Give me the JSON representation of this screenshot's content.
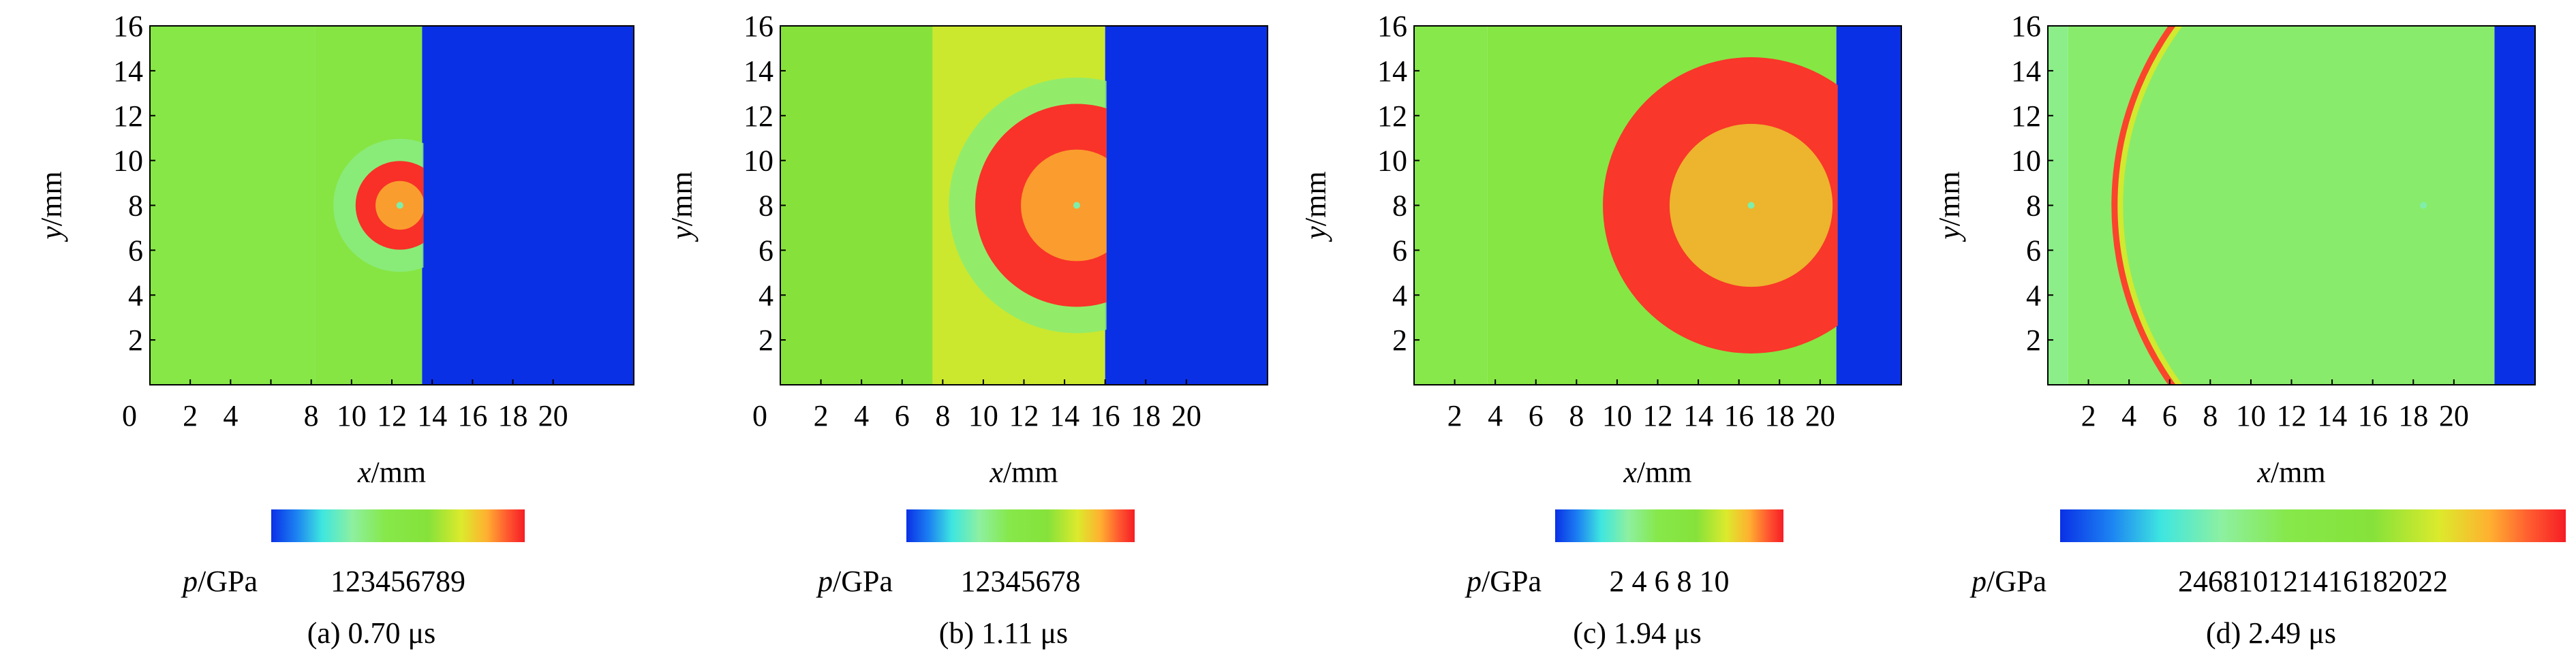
{
  "chart_data": [
    {
      "type": "heatmap",
      "caption": "(a) 0.70 μs",
      "xlabel": {
        "var": "x",
        "unit": "/mm"
      },
      "ylabel": {
        "var": "y",
        "unit": "/mm"
      },
      "xlim": [
        0,
        24
      ],
      "ylim": [
        0,
        16
      ],
      "x_ticks": [
        0,
        2,
        4,
        6,
        8,
        10,
        12,
        14,
        16,
        18,
        20
      ],
      "y_ticks": [
        2,
        4,
        6,
        8,
        10,
        12,
        14,
        16
      ],
      "x_tick_labels": [
        "0",
        "2",
        "4",
        "",
        "8",
        "10",
        "12",
        "14",
        "16",
        "18",
        "20"
      ],
      "y_tick_labels": [
        "2",
        "4",
        "6",
        "8",
        "10",
        "12",
        "14",
        "16"
      ],
      "colorbar": {
        "var": "p",
        "unit": "/GPa",
        "range": [
          0.5,
          9.5
        ],
        "ticks": [
          "1",
          "2",
          "3",
          "4",
          "5",
          "6",
          "7",
          "8",
          "9"
        ]
      },
      "regions": {
        "left_p": 4.8,
        "left_x_end": 8.2,
        "mid_p": 5.2,
        "front_x": 13.5,
        "right_p": 0.5,
        "center": [
          12.4,
          8.0
        ],
        "inner_radius": 2.2,
        "ring_radius": 3.3,
        "inner_p_low": 8.0,
        "inner_p_high": 9.3,
        "ring_p": 3.8
      }
    },
    {
      "type": "heatmap",
      "caption": "(b) 1.11 μs",
      "xlabel": {
        "var": "x",
        "unit": "/mm"
      },
      "ylabel": {
        "var": "y",
        "unit": "/mm"
      },
      "xlim": [
        0,
        24
      ],
      "ylim": [
        0,
        16
      ],
      "x_ticks": [
        0,
        2,
        4,
        6,
        8,
        10,
        12,
        14,
        16,
        18,
        20
      ],
      "y_ticks": [
        2,
        4,
        6,
        8,
        10,
        12,
        14,
        16
      ],
      "x_tick_labels": [
        "0",
        "2",
        "4",
        "6",
        "8",
        "10",
        "12",
        "14",
        "16",
        "18",
        "20"
      ],
      "y_tick_labels": [
        "2",
        "4",
        "6",
        "8",
        "10",
        "12",
        "14",
        "16"
      ],
      "colorbar": {
        "var": "p",
        "unit": "/GPa",
        "range": [
          0.5,
          8.5
        ],
        "ticks": [
          "1",
          "2",
          "3",
          "4",
          "5",
          "6",
          "7",
          "8"
        ]
      },
      "regions": {
        "left_p": 5.4,
        "left_x_end": 7.5,
        "mid_p": 6.3,
        "front_x": 16.0,
        "right_p": 0.5,
        "center": [
          14.6,
          8.0
        ],
        "inner_radius": 5.0,
        "ring_radius": 6.3,
        "inner_p_low": 7.2,
        "inner_p_high": 8.3,
        "ring_p": 3.6
      }
    },
    {
      "type": "heatmap",
      "caption": "(c) 1.94 μs",
      "xlabel": {
        "var": "x",
        "unit": "/mm"
      },
      "ylabel": {
        "var": "y",
        "unit": "/mm"
      },
      "xlim": [
        0,
        24
      ],
      "ylim": [
        0,
        16
      ],
      "x_ticks": [
        2,
        4,
        6,
        8,
        10,
        12,
        14,
        16,
        18,
        20
      ],
      "y_ticks": [
        2,
        4,
        6,
        8,
        10,
        12,
        14,
        16
      ],
      "x_tick_labels": [
        "2",
        "4",
        "6",
        "8",
        "10",
        "12",
        "14",
        "16",
        "18",
        "20"
      ],
      "y_tick_labels": [
        "2",
        "4",
        "6",
        "8",
        "10",
        "12",
        "14",
        "16"
      ],
      "colorbar": {
        "var": "p",
        "unit": "/GPa",
        "range": [
          0.5,
          10.5
        ],
        "ticks": [
          "2",
          "4",
          "6",
          "8",
          "10"
        ]
      },
      "regions": {
        "left_p": 5.0,
        "left_x_end": 3.6,
        "mid_p": 5.6,
        "front_x": 20.8,
        "right_p": 0.5,
        "center": [
          16.6,
          8.0
        ],
        "inner_radius": 7.3,
        "ring_radius": 7.3,
        "inner_p_low": 8.4,
        "inner_p_high": 10.2,
        "ring_p": 5.0
      }
    },
    {
      "type": "heatmap",
      "caption": "(d) 2.49 μs",
      "xlabel": {
        "var": "x",
        "unit": "/mm"
      },
      "ylabel": {
        "var": "y",
        "unit": "/mm"
      },
      "xlim": [
        0,
        24
      ],
      "ylim": [
        0,
        16
      ],
      "x_ticks": [
        2,
        4,
        6,
        8,
        10,
        12,
        14,
        16,
        18,
        20
      ],
      "y_ticks": [
        2,
        4,
        6,
        8,
        10,
        12,
        14,
        16
      ],
      "x_tick_labels": [
        "2",
        "4",
        "6",
        "8",
        "10",
        "12",
        "14",
        "16",
        "18",
        "20"
      ],
      "y_tick_labels": [
        "2",
        "4",
        "6",
        "8",
        "10",
        "12",
        "14",
        "16"
      ],
      "colorbar": {
        "var": "p",
        "unit": "/GPa",
        "range": [
          0.5,
          23.0
        ],
        "ticks": [
          "2",
          "4",
          "6",
          "8",
          "10",
          "12",
          "14",
          "16",
          "18",
          "20",
          "22"
        ]
      },
      "regions": {
        "left_p": 8.5,
        "left_x_end": 1.0,
        "mid_p": 9.5,
        "front_x": 22.0,
        "right_p": 0.5,
        "center": [
          18.5,
          8.0
        ],
        "inner_radius": 15.2,
        "ring_radius": 15.2,
        "inner_p_low": 10.0,
        "inner_p_high": 11.0,
        "ring_p": 22.0
      }
    }
  ]
}
